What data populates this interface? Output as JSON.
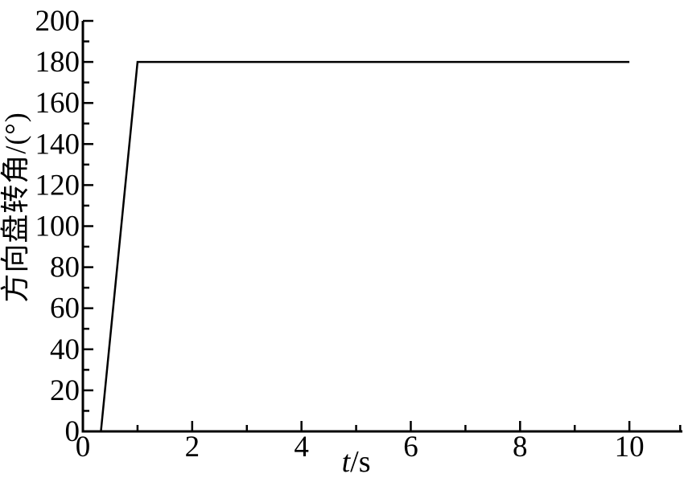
{
  "figure": {
    "background": "#ffffff",
    "foreground": "#000000"
  },
  "chart_data": {
    "type": "line",
    "title": "",
    "xlabel": "t/s",
    "xlabel_italic_part": "t",
    "xlabel_upright_part": "/s",
    "ylabel": "方向盘转角/(°)",
    "xlim": [
      0,
      10.97
    ],
    "ylim": [
      0,
      200
    ],
    "x_major_ticks": [
      0,
      2,
      4,
      6,
      8,
      10
    ],
    "x_major_tick_labels": [
      "0",
      "2",
      "4",
      "6",
      "8",
      "10"
    ],
    "x_minor_ticks": [
      1,
      3,
      5,
      7,
      9,
      10.93
    ],
    "y_major_ticks": [
      0,
      20,
      40,
      60,
      80,
      100,
      120,
      140,
      160,
      180,
      200
    ],
    "y_major_tick_labels": [
      "0",
      "20",
      "40",
      "60",
      "80",
      "100",
      "120",
      "140",
      "160",
      "180",
      "200"
    ],
    "y_minor_ticks": [
      10,
      30,
      50,
      70,
      90,
      110,
      130,
      150,
      170,
      190
    ],
    "grid": false,
    "legend": "none",
    "spines": "left-and-bottom-only",
    "tick_direction": "in",
    "axis_color": "#000000",
    "background": "#ffffff",
    "series": [
      {
        "name": "steering-wheel-angle",
        "color": "#000000",
        "line_width": 2.5,
        "x": [
          0.33,
          1.0,
          10.0
        ],
        "y": [
          0,
          180,
          180
        ],
        "description": "rises steeply from (0.33, 0) to (1, 180) then stays constant at 180 deg until t = 10 s"
      }
    ]
  }
}
